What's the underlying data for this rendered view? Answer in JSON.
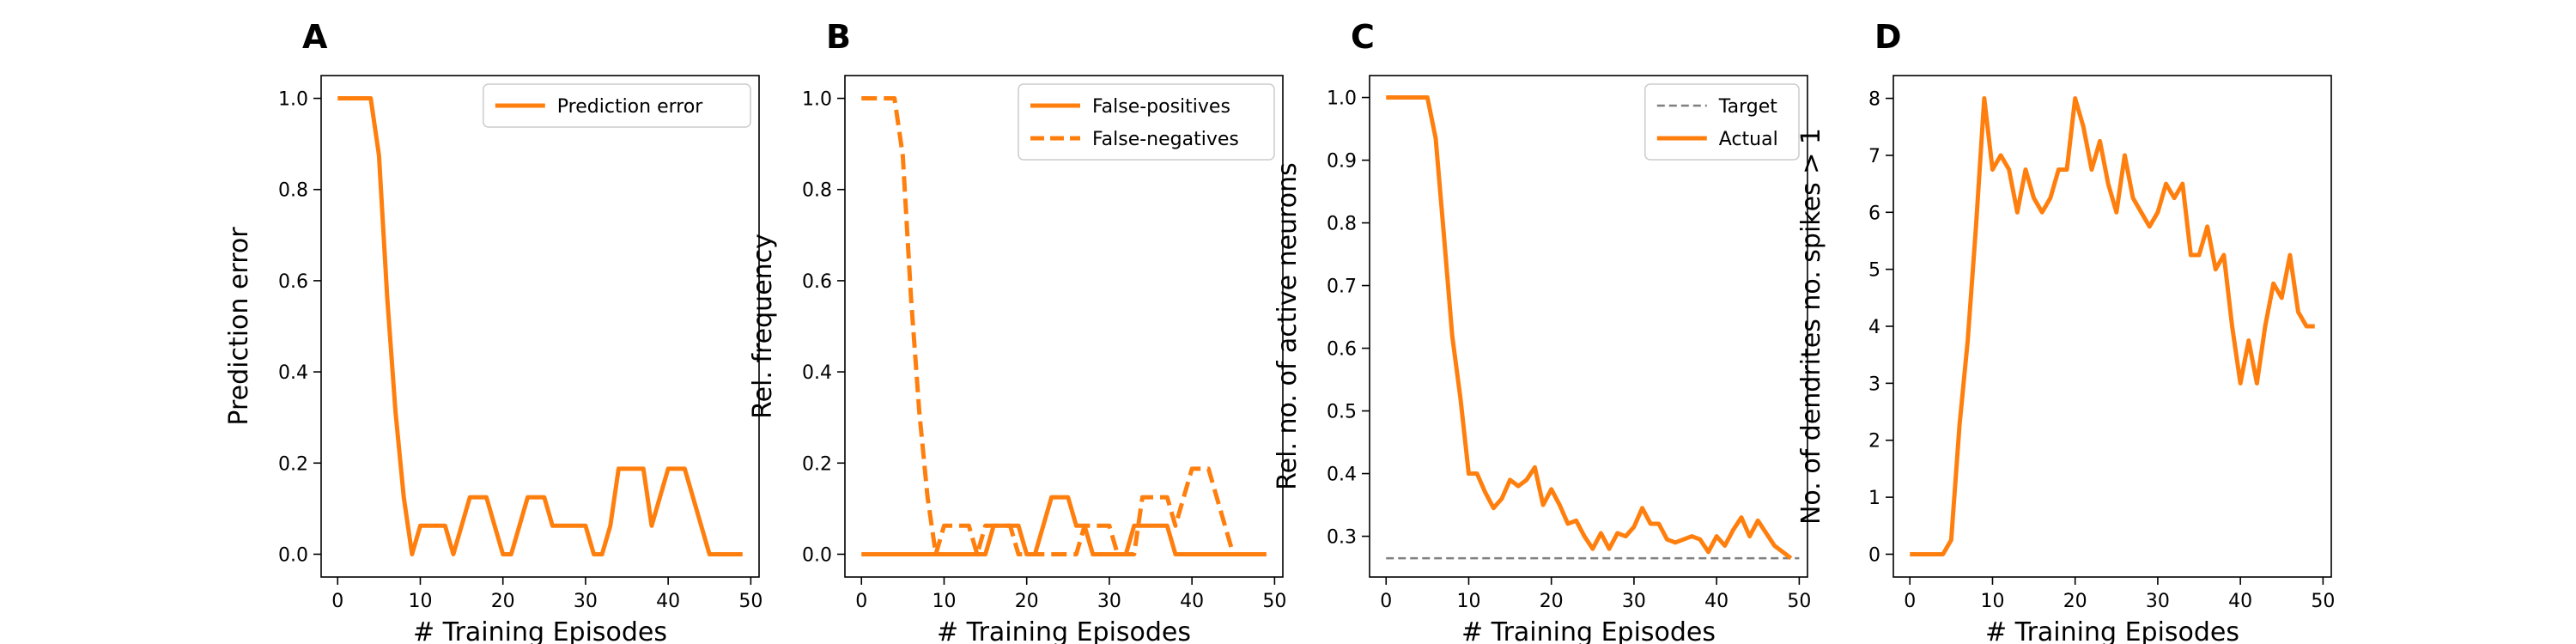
{
  "chart_data": [
    {
      "panel": "A",
      "type": "line",
      "xlabel": "# Training Episodes",
      "ylabel": "Prediction error",
      "xlim": [
        -2,
        51
      ],
      "ylim": [
        -0.05,
        1.05
      ],
      "xticks": [
        0,
        10,
        20,
        30,
        40,
        50
      ],
      "yticks": [
        0.0,
        0.2,
        0.4,
        0.6,
        0.8,
        1.0
      ],
      "ytick_decimals": 1,
      "legend_position": "top-right",
      "grid": false,
      "series": [
        {
          "name": "Prediction error",
          "color": "#ff7f0e",
          "dash": "solid",
          "x": [
            0,
            1,
            2,
            3,
            4,
            5,
            6,
            7,
            8,
            9,
            10,
            11,
            12,
            13,
            14,
            15,
            16,
            17,
            18,
            19,
            20,
            21,
            22,
            23,
            24,
            25,
            26,
            27,
            28,
            29,
            30,
            31,
            32,
            33,
            34,
            35,
            36,
            37,
            38,
            39,
            40,
            41,
            42,
            43,
            44,
            45,
            46,
            47,
            48,
            49
          ],
          "y": [
            1.0,
            1.0,
            1.0,
            1.0,
            1.0,
            0.875,
            0.5625,
            0.3125,
            0.125,
            0.0,
            0.0625,
            0.0625,
            0.0625,
            0.0625,
            0.0,
            0.0625,
            0.125,
            0.125,
            0.125,
            0.0625,
            0.0,
            0.0,
            0.0625,
            0.125,
            0.125,
            0.125,
            0.0625,
            0.0625,
            0.0625,
            0.0625,
            0.0625,
            0.0,
            0.0,
            0.0625,
            0.1875,
            0.1875,
            0.1875,
            0.1875,
            0.0625,
            0.125,
            0.1875,
            0.1875,
            0.1875,
            0.125,
            0.0625,
            0.0,
            0.0,
            0.0,
            0.0,
            0.0
          ]
        }
      ]
    },
    {
      "panel": "B",
      "type": "line",
      "xlabel": "# Training Episodes",
      "ylabel": "Rel. frequency",
      "xlim": [
        -2,
        51
      ],
      "ylim": [
        -0.05,
        1.05
      ],
      "xticks": [
        0,
        10,
        20,
        30,
        40,
        50
      ],
      "yticks": [
        0.0,
        0.2,
        0.4,
        0.6,
        0.8,
        1.0
      ],
      "ytick_decimals": 1,
      "legend_position": "top-right",
      "grid": false,
      "series": [
        {
          "name": "False-positives",
          "color": "#ff7f0e",
          "dash": "solid",
          "x": [
            0,
            1,
            2,
            3,
            4,
            5,
            6,
            7,
            8,
            9,
            10,
            11,
            12,
            13,
            14,
            15,
            16,
            17,
            18,
            19,
            20,
            21,
            22,
            23,
            24,
            25,
            26,
            27,
            28,
            29,
            30,
            31,
            32,
            33,
            34,
            35,
            36,
            37,
            38,
            39,
            40,
            41,
            42,
            43,
            44,
            45,
            46,
            47,
            48,
            49
          ],
          "y": [
            0,
            0,
            0,
            0,
            0,
            0,
            0,
            0,
            0,
            0,
            0,
            0,
            0,
            0,
            0,
            0,
            0.0625,
            0.0625,
            0.0625,
            0.0625,
            0,
            0,
            0.0625,
            0.125,
            0.125,
            0.125,
            0.0625,
            0.0625,
            0,
            0,
            0,
            0,
            0,
            0.0625,
            0.0625,
            0.0625,
            0.0625,
            0.0625,
            0,
            0,
            0,
            0,
            0,
            0,
            0,
            0,
            0,
            0,
            0,
            0
          ]
        },
        {
          "name": "False-negatives",
          "color": "#ff7f0e",
          "dash": "dashed",
          "x": [
            0,
            1,
            2,
            3,
            4,
            5,
            6,
            7,
            8,
            9,
            10,
            11,
            12,
            13,
            14,
            15,
            16,
            17,
            18,
            19,
            20,
            21,
            22,
            23,
            24,
            25,
            26,
            27,
            28,
            29,
            30,
            31,
            32,
            33,
            34,
            35,
            36,
            37,
            38,
            39,
            40,
            41,
            42,
            43,
            44,
            45,
            46,
            47,
            48,
            49
          ],
          "y": [
            1.0,
            1.0,
            1.0,
            1.0,
            1.0,
            0.875,
            0.5625,
            0.3125,
            0.125,
            0.0,
            0.0625,
            0.0625,
            0.0625,
            0.0625,
            0,
            0.0625,
            0.0625,
            0.0625,
            0.0625,
            0,
            0,
            0,
            0,
            0,
            0,
            0,
            0,
            0.0625,
            0.0625,
            0.0625,
            0.0625,
            0,
            0,
            0,
            0.125,
            0.125,
            0.125,
            0.125,
            0.0625,
            0.125,
            0.1875,
            0.1875,
            0.1875,
            0.125,
            0.0625,
            0,
            0,
            0,
            0,
            0
          ]
        }
      ]
    },
    {
      "panel": "C",
      "type": "line",
      "xlabel": "# Training Episodes",
      "ylabel": "Rel. no. of active neurons",
      "xlim": [
        -2,
        51
      ],
      "ylim": [
        0.235,
        1.035
      ],
      "xticks": [
        0,
        10,
        20,
        30,
        40,
        50
      ],
      "yticks": [
        0.3,
        0.4,
        0.5,
        0.6,
        0.7,
        0.8,
        0.9,
        1.0
      ],
      "ytick_decimals": 1,
      "legend_position": "top-right",
      "grid": false,
      "series": [
        {
          "name": "Target",
          "color": "#7f7f7f",
          "dash": "dashed",
          "thin": true,
          "x": [
            0,
            50
          ],
          "y": [
            0.265,
            0.265
          ]
        },
        {
          "name": "Actual",
          "color": "#ff7f0e",
          "dash": "solid",
          "x": [
            0,
            1,
            2,
            3,
            4,
            5,
            6,
            7,
            8,
            9,
            10,
            11,
            12,
            13,
            14,
            15,
            16,
            17,
            18,
            19,
            20,
            21,
            22,
            23,
            24,
            25,
            26,
            27,
            28,
            29,
            30,
            31,
            32,
            33,
            34,
            35,
            36,
            37,
            38,
            39,
            40,
            41,
            42,
            43,
            44,
            45,
            46,
            47,
            48,
            49
          ],
          "y": [
            1.0,
            1.0,
            1.0,
            1.0,
            1.0,
            1.0,
            0.935,
            0.78,
            0.62,
            0.52,
            0.4,
            0.4,
            0.37,
            0.345,
            0.36,
            0.39,
            0.38,
            0.39,
            0.41,
            0.35,
            0.375,
            0.35,
            0.32,
            0.325,
            0.3,
            0.28,
            0.305,
            0.28,
            0.305,
            0.3,
            0.315,
            0.345,
            0.32,
            0.32,
            0.295,
            0.29,
            0.295,
            0.3,
            0.295,
            0.275,
            0.3,
            0.285,
            0.31,
            0.33,
            0.3,
            0.325,
            0.305,
            0.285,
            0.275,
            0.265
          ]
        }
      ]
    },
    {
      "panel": "D",
      "type": "line",
      "xlabel": "# Training Episodes",
      "ylabel": "No. of dendrites no. spikes > 1",
      "xlim": [
        -2,
        51
      ],
      "ylim": [
        -0.4,
        8.4
      ],
      "xticks": [
        0,
        10,
        20,
        30,
        40,
        50
      ],
      "yticks": [
        0,
        1,
        2,
        3,
        4,
        5,
        6,
        7,
        8
      ],
      "ytick_decimals": 0,
      "legend_position": "none",
      "grid": false,
      "series": [
        {
          "name": "",
          "color": "#ff7f0e",
          "dash": "solid",
          "x": [
            0,
            1,
            2,
            3,
            4,
            5,
            6,
            7,
            8,
            9,
            10,
            11,
            12,
            13,
            14,
            15,
            16,
            17,
            18,
            19,
            20,
            21,
            22,
            23,
            24,
            25,
            26,
            27,
            28,
            29,
            30,
            31,
            32,
            33,
            34,
            35,
            36,
            37,
            38,
            39,
            40,
            41,
            42,
            43,
            44,
            45,
            46,
            47,
            48,
            49
          ],
          "y": [
            0,
            0,
            0,
            0,
            0,
            0.25,
            2.25,
            3.75,
            5.75,
            8.0,
            6.75,
            7.0,
            6.75,
            6.0,
            6.75,
            6.25,
            6.0,
            6.25,
            6.75,
            6.75,
            8.0,
            7.5,
            6.75,
            7.25,
            6.5,
            6.0,
            7.0,
            6.25,
            6.0,
            5.75,
            6.0,
            6.5,
            6.25,
            6.5,
            5.25,
            5.25,
            5.75,
            5.0,
            5.25,
            4.0,
            3.0,
            3.75,
            3.0,
            4.0,
            4.75,
            4.5,
            5.25,
            4.25,
            4.0,
            4.0
          ]
        }
      ]
    }
  ]
}
